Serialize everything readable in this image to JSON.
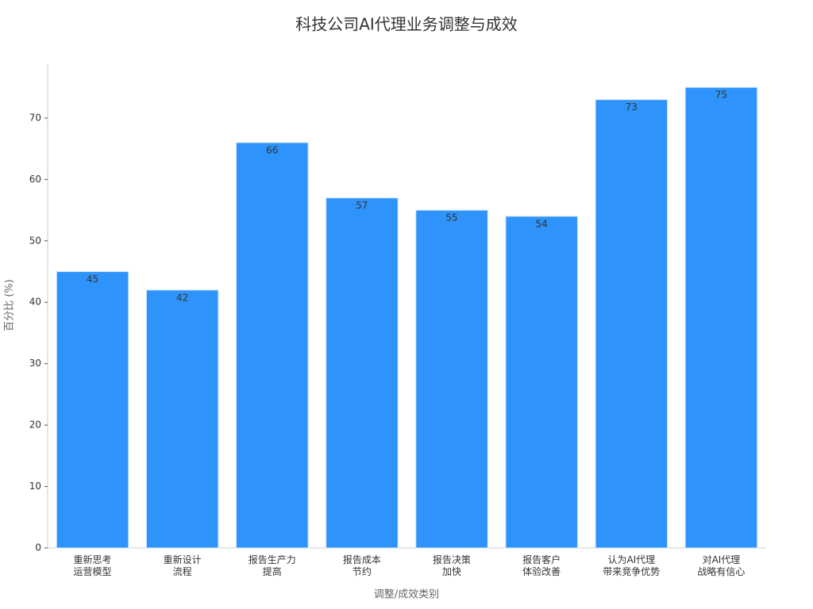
{
  "chart_data": {
    "type": "bar",
    "title": "科技公司AI代理业务调整与成效",
    "xlabel": "调整/成效类别",
    "ylabel": "百分比 (%)",
    "categories": [
      "重新思考\n运营模型",
      "重新设计\n流程",
      "报告生产力\n提高",
      "报告成本\n节约",
      "报告决策\n加快",
      "报告客户\n体验改善",
      "认为AI代理\n带来竞争优势",
      "对AI代理\n战略有信心"
    ],
    "values": [
      45,
      42,
      66,
      57,
      55,
      54,
      73,
      75
    ],
    "color": "#2e93fa",
    "ylim": [
      0,
      78.9
    ],
    "yticks": [
      0,
      10,
      20,
      30,
      40,
      50,
      60,
      70
    ],
    "grid": false
  }
}
